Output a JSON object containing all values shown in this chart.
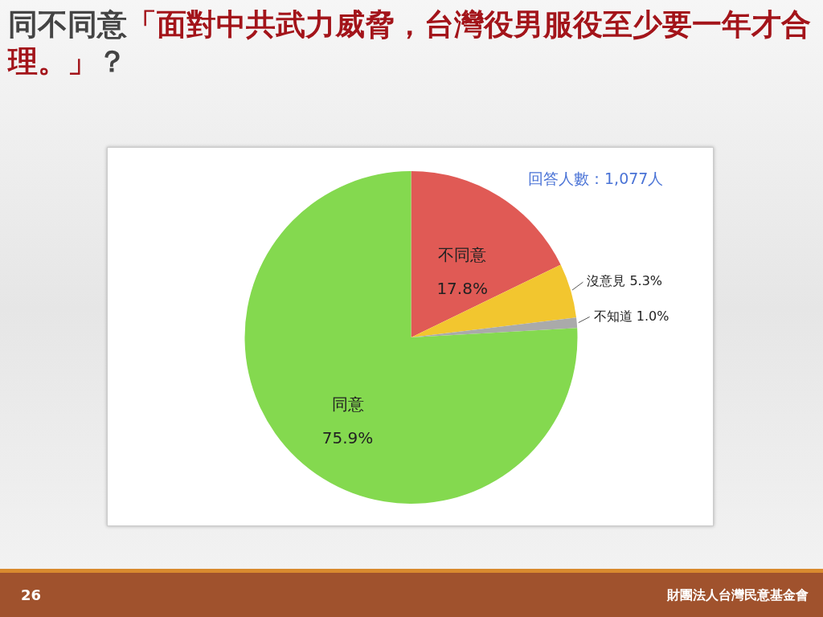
{
  "chart_data": {
    "type": "pie",
    "title": "同不同意「面對中共武力威脅，台灣役男服役至少要一年才合理。」？",
    "categories": [
      "不同意",
      "沒意見",
      "不知道",
      "同意"
    ],
    "values": [
      17.8,
      5.3,
      1.0,
      75.9
    ],
    "value_labels": [
      "17.8%",
      "5.3%",
      "1.0%",
      "75.9%"
    ],
    "colors": [
      "#e05a55",
      "#f2c62f",
      "#aaaaaa",
      "#84d94f"
    ],
    "annotations": [
      "回答人數：1,077人",
      "26",
      "財團法人台灣民意基金會"
    ]
  }
}
